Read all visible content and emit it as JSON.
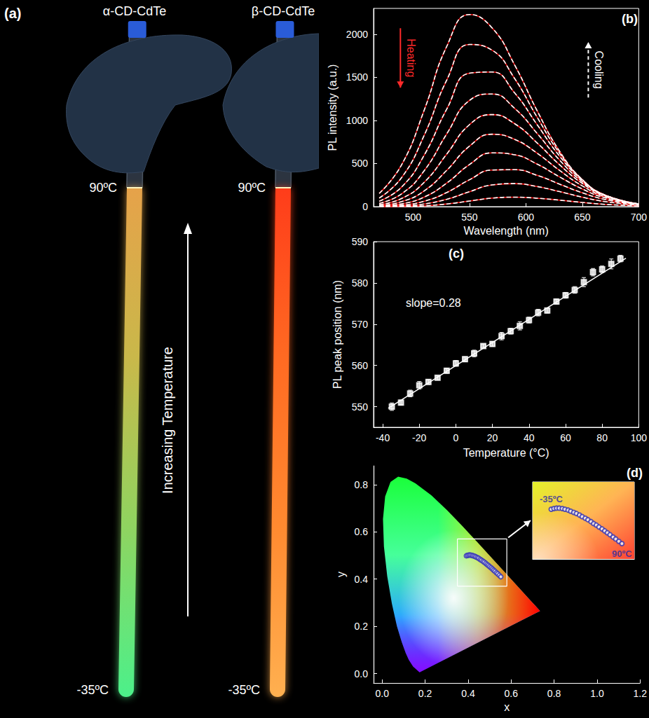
{
  "photo": {
    "panel_label": "(a)",
    "arrow_label": "Increasing Temperature",
    "tubes": [
      {
        "label": "α-CD-CdTe",
        "top_label": "90ºC",
        "bottom_label": "-35ºC",
        "colors": [
          "#e6a24a",
          "#c9b84a",
          "#8fd460",
          "#4cf08a"
        ]
      },
      {
        "label": "β-CD-CdTe",
        "top_label": "90ºC",
        "bottom_label": "-35ºC",
        "colors": [
          "#ff3c1a",
          "#ff6a22",
          "#ff8a30",
          "#ffb050"
        ]
      }
    ]
  },
  "chart_data": [
    {
      "panel_label": "(b)",
      "type": "line",
      "x_label": "Wavelength (nm)",
      "y_label": "PL intensity (a.u.)",
      "xlim": [
        465,
        700
      ],
      "xticks": [
        500,
        550,
        600,
        650,
        700
      ],
      "ylim": [
        0,
        2300
      ],
      "yticks": [
        0,
        500,
        1000,
        1500,
        2000
      ],
      "grid": false,
      "annotations": [
        {
          "text": "Heating",
          "color": "#ff2a2a"
        },
        {
          "text": "Cooling",
          "color": "#ffffff"
        }
      ],
      "x": [
        470,
        490,
        510,
        530,
        550,
        570,
        590,
        610,
        630,
        650,
        670,
        700
      ],
      "series": [
        {
          "color": "#ff1a1a",
          "line_style": "solid",
          "values": [
            153,
            488,
            1123,
            1863,
            2229,
            2075,
            1645,
            1112,
            640,
            314,
            131,
            26
          ]
        },
        {
          "color": "#ff1a1a",
          "line_style": "solid",
          "values": [
            100,
            339,
            831,
            1472,
            1881,
            1816,
            1487,
            1037,
            617,
            313,
            135,
            28
          ]
        },
        {
          "color": "#ff1a1a",
          "line_style": "solid",
          "values": [
            63,
            229,
            600,
            1135,
            1548,
            1562,
            1320,
            951,
            584,
            305,
            136,
            30
          ]
        },
        {
          "color": "#ff1a1a",
          "line_style": "solid",
          "values": [
            39,
            150,
            419,
            847,
            1232,
            1307,
            1141,
            849,
            538,
            290,
            134,
            31
          ]
        },
        {
          "color": "#ff1a1a",
          "line_style": "solid",
          "values": [
            23,
            95,
            284,
            612,
            951,
            1068,
            963,
            739,
            484,
            270,
            128,
            31
          ]
        },
        {
          "color": "#ff1a1a",
          "line_style": "solid",
          "values": [
            13,
            58,
            184,
            423,
            702,
            840,
            781,
            620,
            419,
            241,
            118,
            30
          ]
        },
        {
          "color": "#ff1a1a",
          "line_style": "solid",
          "values": [
            7,
            33,
            112,
            275,
            488,
            624,
            602,
            493,
            344,
            205,
            103,
            28
          ]
        },
        {
          "color": "#ff1a1a",
          "line_style": "solid",
          "values": [
            3,
            17,
            63,
            165,
            312,
            425,
            429,
            363,
            261,
            161,
            84,
            24
          ]
        },
        {
          "color": "#ff1a1a",
          "line_style": "solid",
          "values": [
            2,
            8,
            31,
            86,
            173,
            252,
            267,
            233,
            174,
            110,
            59,
            17
          ]
        },
        {
          "color": "#ff1a1a",
          "line_style": "solid",
          "values": [
            1,
            3,
            10,
            31,
            65,
            99,
            110,
            98,
            75,
            49,
            27,
            8
          ]
        },
        {
          "color": "#ffffff",
          "line_style": "dashed",
          "values": [
            153,
            488,
            1123,
            1863,
            2229,
            2075,
            1645,
            1112,
            640,
            314,
            131,
            26
          ]
        },
        {
          "color": "#ffffff",
          "line_style": "dashed",
          "values": [
            100,
            339,
            831,
            1472,
            1881,
            1816,
            1487,
            1037,
            617,
            313,
            135,
            28
          ]
        },
        {
          "color": "#ffffff",
          "line_style": "dashed",
          "values": [
            63,
            229,
            600,
            1135,
            1548,
            1562,
            1320,
            951,
            584,
            305,
            136,
            30
          ]
        },
        {
          "color": "#ffffff",
          "line_style": "dashed",
          "values": [
            39,
            150,
            419,
            847,
            1232,
            1307,
            1141,
            849,
            538,
            290,
            134,
            31
          ]
        },
        {
          "color": "#ffffff",
          "line_style": "dashed",
          "values": [
            23,
            95,
            284,
            612,
            951,
            1068,
            963,
            739,
            484,
            270,
            128,
            31
          ]
        },
        {
          "color": "#ffffff",
          "line_style": "dashed",
          "values": [
            13,
            58,
            184,
            423,
            702,
            840,
            781,
            620,
            419,
            241,
            118,
            30
          ]
        },
        {
          "color": "#ffffff",
          "line_style": "dashed",
          "values": [
            7,
            33,
            112,
            275,
            488,
            624,
            602,
            493,
            344,
            205,
            103,
            28
          ]
        },
        {
          "color": "#ffffff",
          "line_style": "dashed",
          "values": [
            3,
            17,
            63,
            165,
            312,
            425,
            429,
            363,
            261,
            161,
            84,
            24
          ]
        },
        {
          "color": "#ffffff",
          "line_style": "dashed",
          "values": [
            2,
            8,
            31,
            86,
            173,
            252,
            267,
            233,
            174,
            110,
            59,
            17
          ]
        },
        {
          "color": "#ffffff",
          "line_style": "dashed",
          "values": [
            1,
            3,
            10,
            31,
            65,
            99,
            110,
            98,
            75,
            49,
            27,
            8
          ]
        }
      ]
    },
    {
      "panel_label": "(c)",
      "type": "scatter",
      "x_label": "Temperature (°C)",
      "y_label": "PL peak position (nm)",
      "xlim": [
        -45,
        100
      ],
      "xticks": [
        -40,
        -20,
        0,
        20,
        40,
        60,
        80,
        100
      ],
      "ylim": [
        545,
        590
      ],
      "yticks": [
        550,
        560,
        570,
        580,
        590
      ],
      "grid": false,
      "color": "#ffffff",
      "marker": "square",
      "annotations": [
        "slope=0.28"
      ],
      "x": [
        -35,
        -30,
        -25,
        -20,
        -15,
        -10,
        -5,
        0,
        5,
        10,
        15,
        20,
        25,
        30,
        35,
        40,
        45,
        50,
        55,
        60,
        65,
        70,
        75,
        80,
        85,
        90
      ],
      "values": [
        550.0,
        551.0,
        553.2,
        555.2,
        556.0,
        557.0,
        558.7,
        560.5,
        561.5,
        562.9,
        564.7,
        565.2,
        567.1,
        568.3,
        569.6,
        571.0,
        572.8,
        573.3,
        575.5,
        577.0,
        578.3,
        580.2,
        582.6,
        583.3,
        584.6,
        585.9
      ],
      "errors": [
        0.9,
        0.6,
        0.8,
        0.9,
        0.6,
        0.5,
        0.6,
        0.7,
        0.6,
        0.8,
        0.5,
        0.6,
        0.9,
        0.7,
        1.0,
        0.7,
        0.8,
        0.6,
        0.6,
        0.7,
        0.8,
        1.1,
        0.9,
        0.8,
        1.2,
        0.8
      ],
      "fit": {
        "x": [
          -37,
          93
        ],
        "values": [
          549.6,
          586.0
        ]
      }
    },
    {
      "panel_label": "(d)",
      "type": "scatter",
      "x_label": "x",
      "y_label": "y",
      "xlim": [
        -0.04,
        1.2
      ],
      "xticks": [
        {
          "value": 0,
          "label": "0.0"
        },
        0.2,
        0.4,
        0.6,
        0.8,
        {
          "value": 1,
          "label": "1.0"
        },
        1.2
      ],
      "ylim": [
        -0.04,
        0.88
      ],
      "yticks": [
        {
          "value": 0,
          "label": "0.0"
        },
        0.2,
        0.4,
        0.6,
        0.8
      ],
      "grid": false,
      "color": "#3434b4",
      "marker": "circle",
      "x": [
        0.392,
        0.398,
        0.404,
        0.41,
        0.417,
        0.423,
        0.43,
        0.436,
        0.443,
        0.449,
        0.456,
        0.462,
        0.469,
        0.475,
        0.482,
        0.488,
        0.494,
        0.5,
        0.507,
        0.513,
        0.519,
        0.525,
        0.532,
        0.538,
        0.545,
        0.552
      ],
      "values": [
        0.499,
        0.501,
        0.502,
        0.502,
        0.501,
        0.499,
        0.497,
        0.494,
        0.491,
        0.488,
        0.484,
        0.48,
        0.476,
        0.472,
        0.467,
        0.462,
        0.458,
        0.453,
        0.448,
        0.443,
        0.438,
        0.433,
        0.427,
        0.422,
        0.416,
        0.41
      ],
      "spectral_locus": {
        "x": [
          0.1741,
          0.144,
          0.1241,
          0.1096,
          0.0913,
          0.0687,
          0.0454,
          0.0235,
          0.0082,
          0.0039,
          0.0139,
          0.0389,
          0.0743,
          0.1142,
          0.1547,
          0.2296,
          0.3016,
          0.3731,
          0.4441,
          0.5125,
          0.5752,
          0.627,
          0.6915,
          0.7347
        ],
        "y": [
          0.005,
          0.0297,
          0.0578,
          0.0868,
          0.1327,
          0.2007,
          0.295,
          0.4127,
          0.5384,
          0.6548,
          0.7502,
          0.812,
          0.8338,
          0.8262,
          0.8059,
          0.7543,
          0.6923,
          0.6245,
          0.5547,
          0.4866,
          0.4242,
          0.3725,
          0.3083,
          0.2653
        ]
      },
      "inset": {
        "xlim": [
          0.35,
          0.58
        ],
        "ylim": [
          0.37,
          0.57
        ],
        "tick_labels": false,
        "start_label": "-35ºC",
        "end_label": "90ºC"
      }
    }
  ]
}
